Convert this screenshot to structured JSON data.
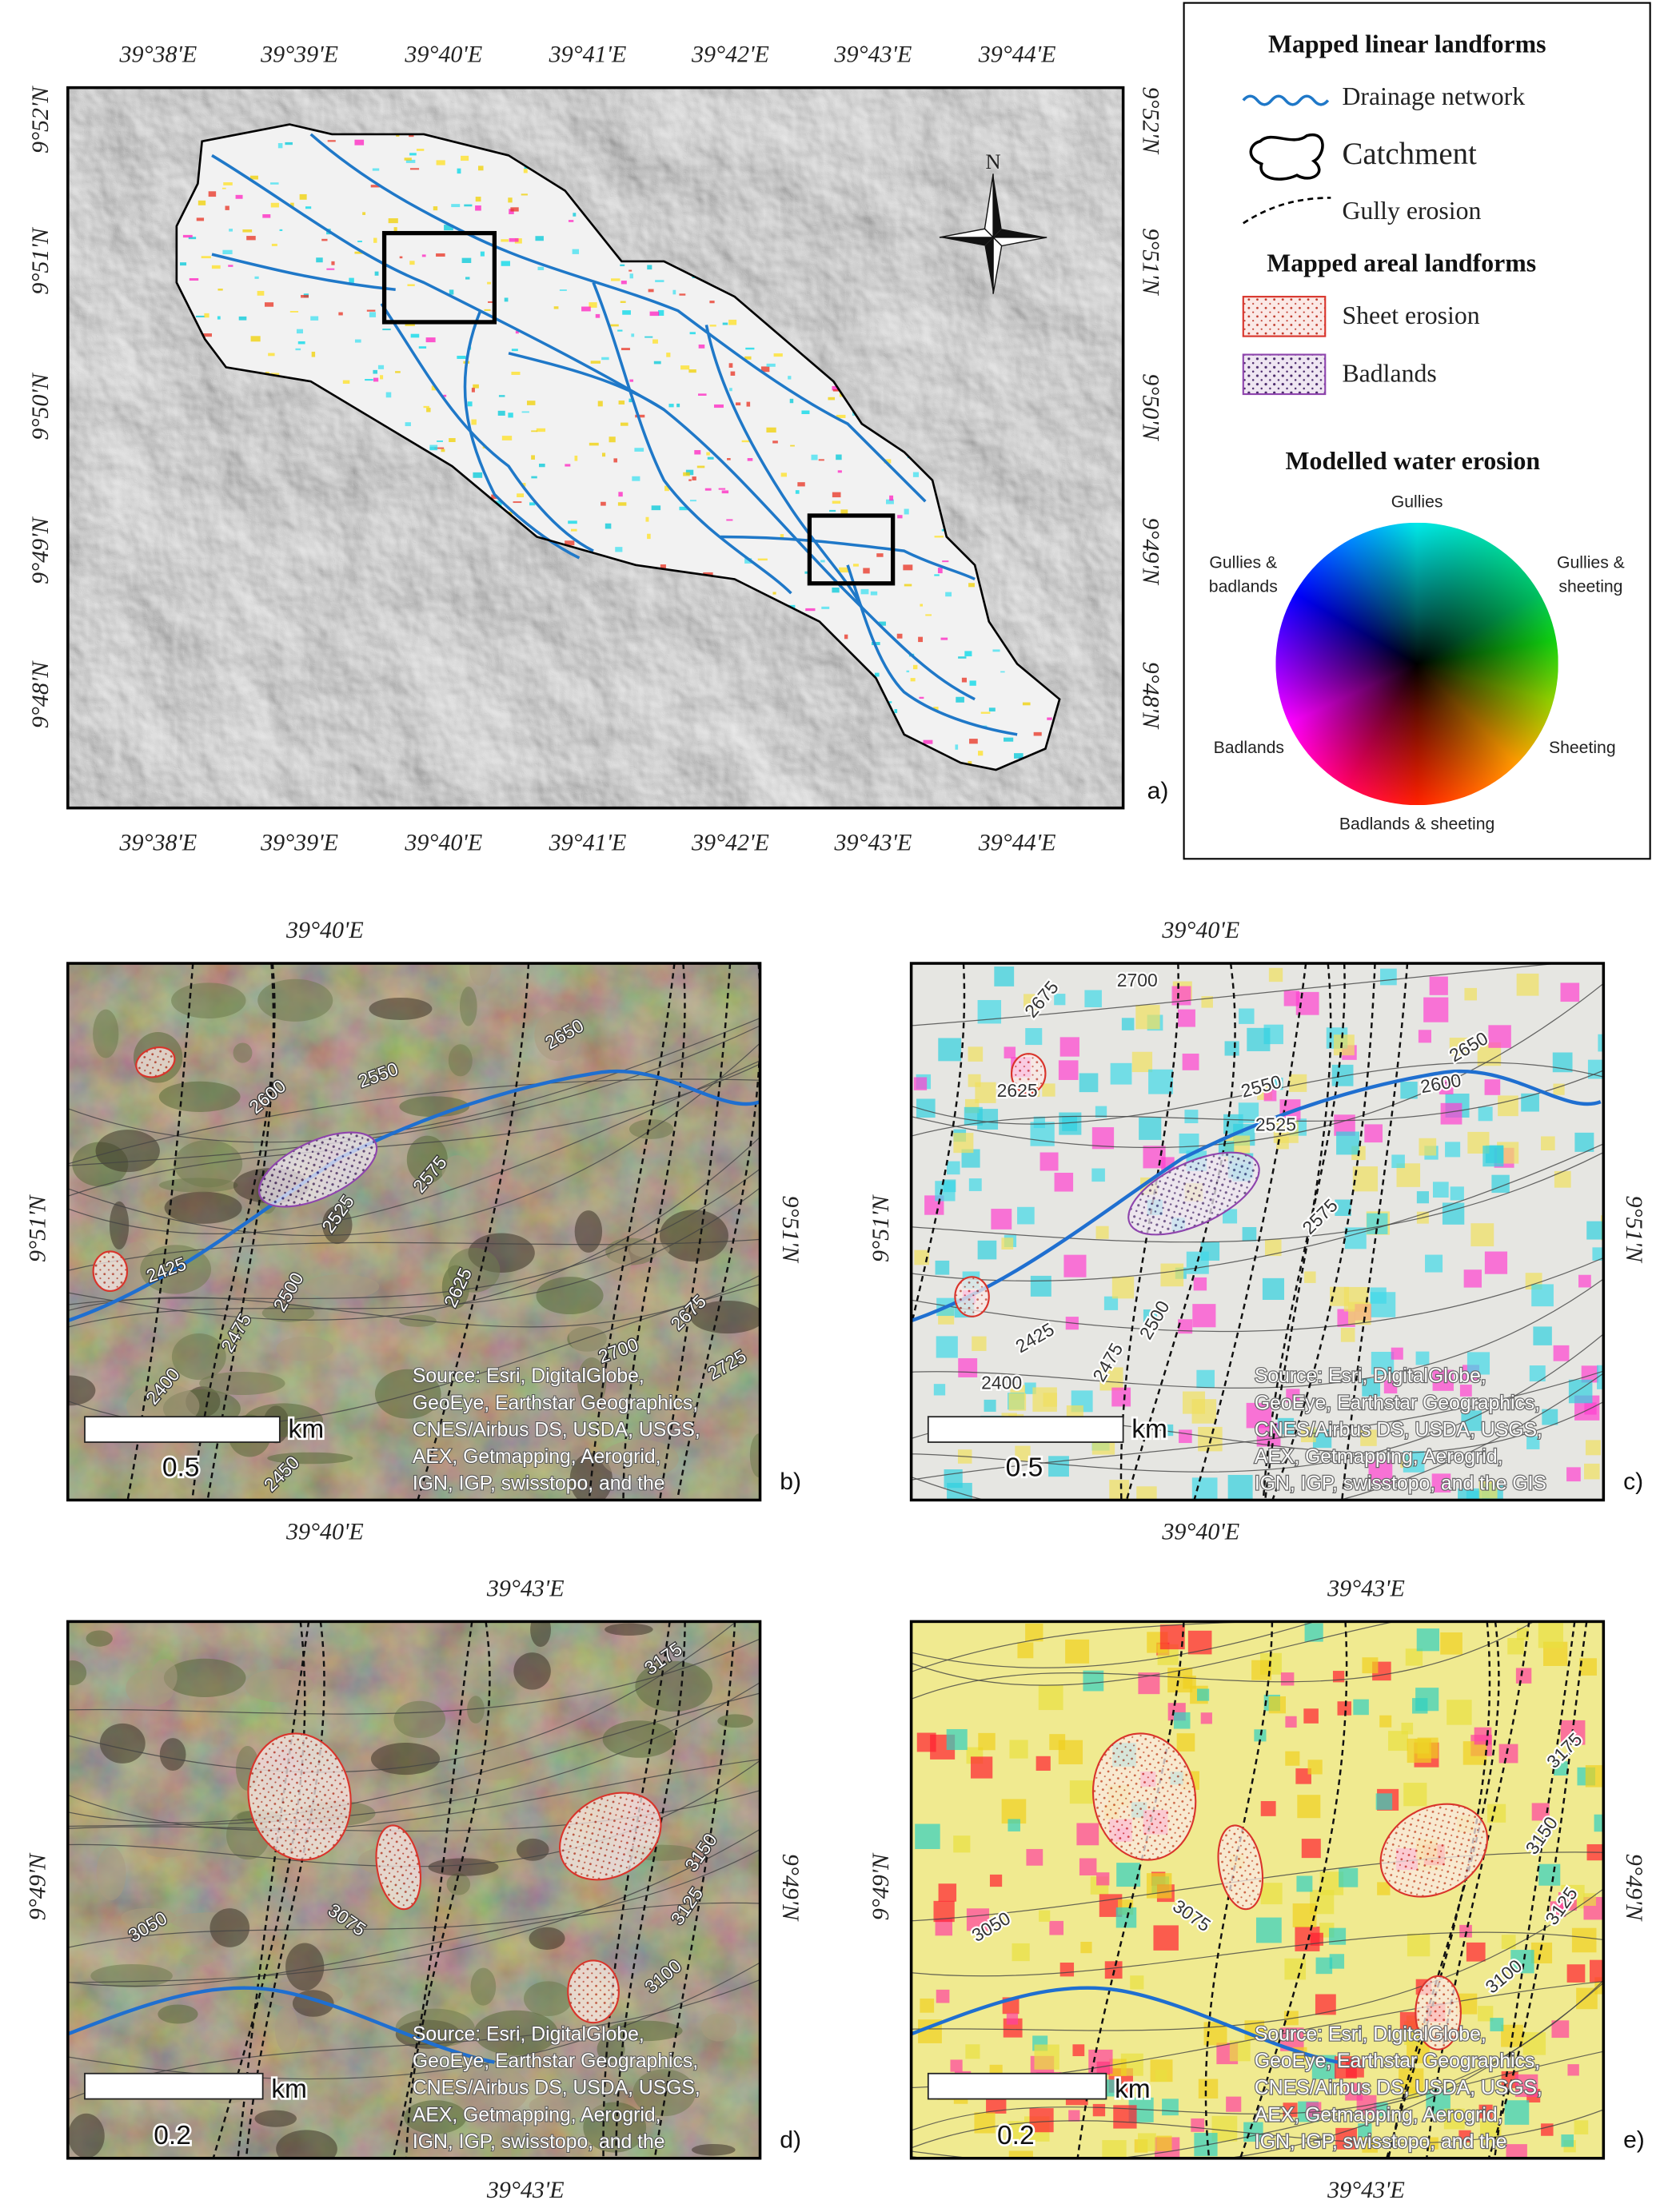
{
  "overview_map": {
    "panel_label": "a)",
    "north_label": "N",
    "lon_labels": [
      "39°38'E",
      "39°39'E",
      "39°40'E",
      "39°41'E",
      "39°42'E",
      "39°43'E",
      "39°44'E"
    ],
    "lat_labels": [
      "9°52'N",
      "9°51'N",
      "9°50'N",
      "9°49'N",
      "9°48'N"
    ]
  },
  "legend": {
    "linear_title": "Mapped linear landforms",
    "drainage": "Drainage network",
    "catchment": "Catchment",
    "gully": "Gully erosion",
    "areal_title": "Mapped areal landforms",
    "sheet": "Sheet erosion",
    "badlands": "Badlands",
    "model_title": "Modelled water erosion",
    "wheel_labels": {
      "top": "Gullies",
      "upper_left": [
        "Gullies &",
        "badlands"
      ],
      "upper_right": [
        "Gullies &",
        "sheeting"
      ],
      "left": "Badlands",
      "right": "Sheeting",
      "bottom": "Badlands & sheeting"
    }
  },
  "detail_maps": [
    {
      "panel_label": "b)",
      "lon_label": "39°40'E",
      "lat_label": "9°51'N",
      "contour_labels": [
        "2650",
        "2600",
        "2550",
        "2575",
        "2525",
        "2625",
        "2425",
        "2475",
        "2500",
        "2400",
        "2700",
        "2675",
        "2725",
        "2450"
      ],
      "scale_value": "0.5",
      "scale_unit": "km",
      "source_lines": [
        "Source: Esri, DigitalGlobe,",
        "GeoEye, Earthstar Geographics,",
        "CNES/Airbus DS, USDA, USGS,",
        "AEX, Getmapping, Aerogrid,",
        "IGN, IGP, swisstopo, and the"
      ]
    },
    {
      "panel_label": "c)",
      "lon_label": "39°40'E",
      "lat_label": "9°51'N",
      "contour_labels": [
        "2700",
        "2675",
        "2650",
        "2625",
        "2600",
        "2550",
        "2525",
        "2575",
        "2425",
        "2475",
        "2500",
        "2400"
      ],
      "scale_value": "0.5",
      "scale_unit": "km",
      "source_lines": [
        "Source: Esri, DigitalGlobe,",
        "GeoEye, Earthstar Geographics,",
        "CNES/Airbus DS, USDA, USGS,",
        "AEX, Getmapping, Aerogrid,",
        "IGN, IGP, swisstopo, and the GIS"
      ]
    },
    {
      "panel_label": "d)",
      "lon_label": "39°43'E",
      "lat_label": "9°49'N",
      "contour_labels": [
        "3175",
        "3150",
        "3125",
        "3100",
        "3075",
        "3050"
      ],
      "scale_value": "0.2",
      "scale_unit": "km",
      "source_lines": [
        "Source: Esri, DigitalGlobe,",
        "GeoEye, Earthstar Geographics,",
        "CNES/Airbus DS, USDA, USGS,",
        "AEX, Getmapping, Aerogrid,",
        "IGN, IGP, swisstopo, and the"
      ]
    },
    {
      "panel_label": "e)",
      "lon_label": "39°43'E",
      "lat_label": "9°49'N",
      "contour_labels": [
        "3175",
        "3150",
        "3125",
        "3100",
        "3075",
        "3050"
      ],
      "scale_value": "0.2",
      "scale_unit": "km",
      "source_lines": [
        "Source: Esri, DigitalGlobe,",
        "GeoEye, Earthstar Geographics,",
        "CNES/Airbus DS, USDA, USGS,",
        "AEX, Getmapping, Aerogrid,",
        "IGN, IGP, swisstopo, and the"
      ]
    }
  ]
}
